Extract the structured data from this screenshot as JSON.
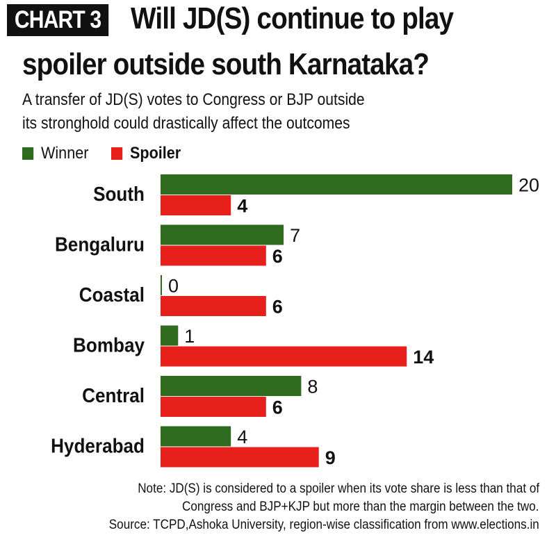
{
  "badge": "CHART 3",
  "title_line1": "Will JD(S) continue to play",
  "title_line2": "spoiler outside south Karnataka?",
  "subtitle_line1": "A transfer of JD(S) votes to Congress or BJP outside",
  "subtitle_line2": "its stronghold could drastically affect the outcomes",
  "note_line1": "Note: JD(S) is considered to a spoiler when its vote share is less than that of",
  "note_line2": "Congress and BJP+KJP but more than the margin between the two.",
  "source": "Source: TCPD,Ashoka University, region-wise classification from www.elections.in",
  "colors": {
    "winner": "#2e6b1f",
    "spoiler": "#e8201c"
  },
  "chart_data": {
    "type": "bar",
    "orientation": "horizontal",
    "categories": [
      "South",
      "Bengaluru",
      "Coastal",
      "Bombay",
      "Central",
      "Hyderabad"
    ],
    "series": [
      {
        "name": "Winner",
        "values": [
          20,
          7,
          0,
          1,
          8,
          4
        ]
      },
      {
        "name": "Spoiler",
        "values": [
          4,
          6,
          6,
          14,
          6,
          9
        ]
      }
    ],
    "legend": "top-left",
    "grid": false,
    "xlim": [
      0,
      20
    ]
  }
}
